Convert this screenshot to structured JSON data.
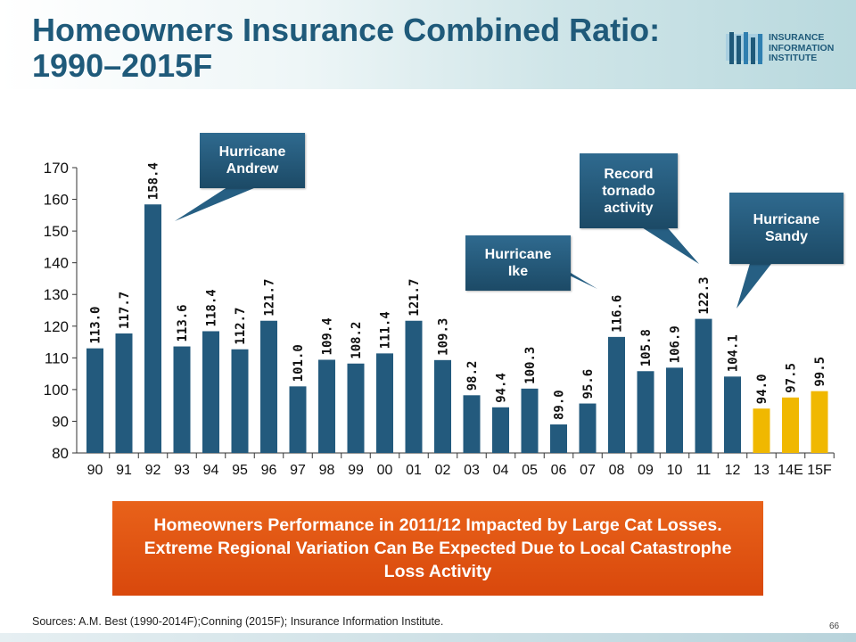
{
  "slide": {
    "title": "Homeowners Insurance Combined Ratio: 1990–2015F",
    "page_number": "66",
    "sources": "Sources: A.M. Best (1990-2014F);Conning (2015F); Insurance Information Institute.",
    "note": "Homeowners Performance in 2011/12 Impacted by Large Cat Losses.  Extreme Regional Variation Can Be Expected Due to Local Catastrophe Loss Activity",
    "logo_text": "INSURANCE\nINFORMATION\nINSTITUTE"
  },
  "callouts": [
    {
      "text": "Hurricane\nAndrew"
    },
    {
      "text": "Hurricane\nIke"
    },
    {
      "text": "Record\ntornado\nactivity"
    },
    {
      "text": "Hurricane\nSandy"
    }
  ],
  "colors": {
    "bar_actual": "#235a7d",
    "bar_forecast": "#f0b800",
    "title": "#1f5a7a",
    "callout": "#265f83",
    "note_box": "#e35515"
  },
  "chart_data": {
    "type": "bar",
    "categories": [
      "90",
      "91",
      "92",
      "93",
      "94",
      "95",
      "96",
      "97",
      "98",
      "99",
      "00",
      "01",
      "02",
      "03",
      "04",
      "05",
      "06",
      "07",
      "08",
      "09",
      "10",
      "11",
      "12",
      "13",
      "14E",
      "15F"
    ],
    "values": [
      113.0,
      117.7,
      158.4,
      113.6,
      118.4,
      112.7,
      121.7,
      101.0,
      109.4,
      108.2,
      111.4,
      121.7,
      109.3,
      98.2,
      94.4,
      100.3,
      89.0,
      95.6,
      116.6,
      105.8,
      106.9,
      122.3,
      104.1,
      94.0,
      97.5,
      99.5
    ],
    "value_labels": [
      "113.0",
      "117.7",
      "158.4",
      "113.6",
      "118.4",
      "112.7",
      "121.7",
      "101.0",
      "109.4",
      "108.2",
      "111.4",
      "121.7",
      "109.3",
      "98.2",
      "94.4",
      "100.3",
      "89.0",
      "95.6",
      "116.6",
      "105.8",
      "106.9",
      "122.3",
      "104.1",
      "94.0",
      "97.5",
      "99.5"
    ],
    "forecast_flags": [
      false,
      false,
      false,
      false,
      false,
      false,
      false,
      false,
      false,
      false,
      false,
      false,
      false,
      false,
      false,
      false,
      false,
      false,
      false,
      false,
      false,
      false,
      false,
      true,
      true,
      true
    ],
    "ylim": [
      80,
      170
    ],
    "yticks": [
      "80",
      "90",
      "100",
      "110",
      "120",
      "130",
      "140",
      "150",
      "160",
      "170"
    ],
    "grid": false,
    "title": "",
    "xlabel": "",
    "ylabel": ""
  }
}
